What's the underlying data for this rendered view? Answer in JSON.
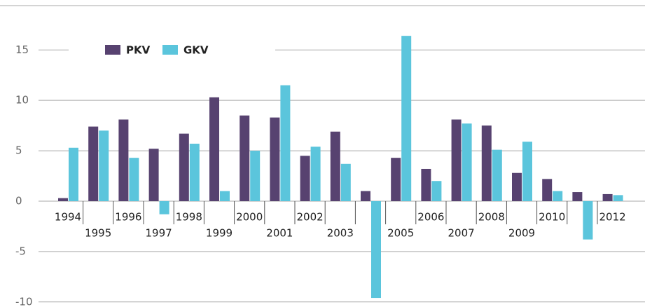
{
  "chart_data": {
    "type": "bar",
    "categories": [
      "1994",
      "1995",
      "1996",
      "1997",
      "1998",
      "1999",
      "2000",
      "2001",
      "2002",
      "2003",
      null,
      "2005",
      "2006",
      "2007",
      "2008",
      "2009",
      "2010",
      null,
      "2012"
    ],
    "series": [
      {
        "name": "PKV",
        "color": "#574270",
        "values": [
          0.3,
          7.4,
          8.1,
          5.2,
          6.7,
          10.3,
          8.5,
          8.3,
          4.5,
          6.9,
          1.0,
          4.3,
          3.2,
          8.1,
          7.5,
          2.8,
          2.2,
          0.9,
          0.7
        ]
      },
      {
        "name": "GKV",
        "color": "#5bc5dc",
        "values": [
          5.3,
          7.0,
          4.3,
          -1.3,
          5.7,
          1.0,
          5.0,
          11.5,
          5.4,
          3.7,
          -9.6,
          16.4,
          2.0,
          7.7,
          5.1,
          5.9,
          1.0,
          -3.8,
          0.6
        ]
      }
    ],
    "ylim": [
      -10.5,
      19.4
    ],
    "yticks": [
      -10,
      -5,
      0,
      5,
      10,
      15
    ],
    "grid": true,
    "legend": "top-left"
  }
}
